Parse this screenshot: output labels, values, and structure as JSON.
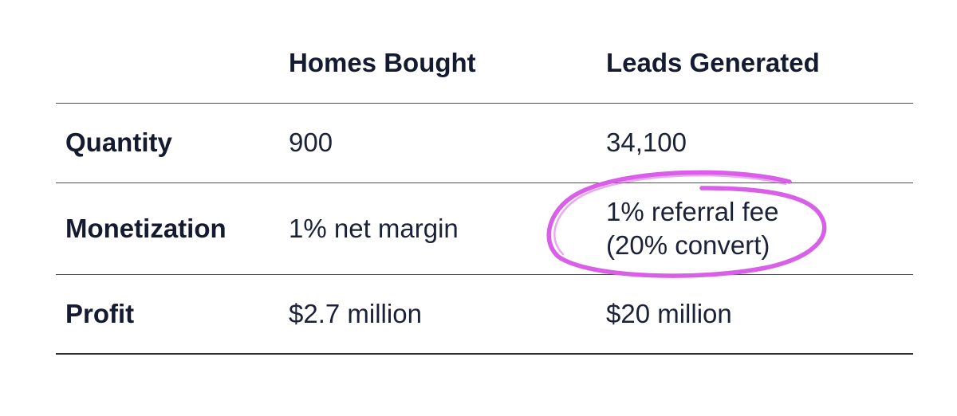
{
  "table": {
    "columns": [
      "",
      "Homes Bought",
      "Leads Generated"
    ],
    "rows": [
      {
        "label": "Quantity",
        "homes_bought": "900",
        "leads_generated": "34,100"
      },
      {
        "label": "Monetization",
        "homes_bought": "1% net margin",
        "leads_generated_lines": [
          "1% referral fee",
          "(20% convert)"
        ]
      },
      {
        "label": "Profit",
        "homes_bought": "$2.7 million",
        "leads_generated": "$20 million"
      }
    ]
  },
  "annotation": {
    "type": "hand-drawn-circle",
    "target": "monetization-leads-generated",
    "color": "#d95ee8"
  }
}
